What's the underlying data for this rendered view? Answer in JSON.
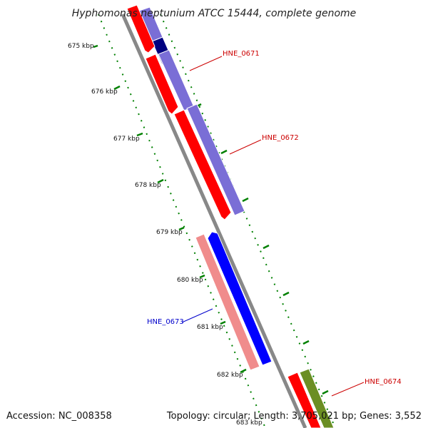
{
  "title": "Hyphomonas neptunium ATCC 15444, complete genome",
  "footer": {
    "accession": "Accession: NC_008358",
    "summary": "Topology: circular; Length: 3,705,021 bp; Genes: 3,552"
  },
  "ticks": [
    {
      "label": "675 kbp"
    },
    {
      "label": "676 kbp"
    },
    {
      "label": "677 kbp"
    },
    {
      "label": "678 kbp"
    },
    {
      "label": "679 kbp"
    },
    {
      "label": "680 kbp"
    },
    {
      "label": "681 kbp"
    },
    {
      "label": "682 kbp"
    },
    {
      "label": "683 kbp"
    }
  ],
  "genes": [
    {
      "label": "HNE_0671",
      "strand": "forward",
      "color": "#cc0000"
    },
    {
      "label": "HNE_0672",
      "strand": "forward",
      "color": "#cc0000"
    },
    {
      "label": "HNE_0673",
      "strand": "reverse",
      "color": "#0000cc"
    },
    {
      "label": "HNE_0674",
      "strand": "forward",
      "color": "#cc0000"
    }
  ],
  "colors": {
    "backbone": "#888888",
    "cds_forward": "#ff0000",
    "cds_reverse": "#0000ff",
    "product_forward": "#7a6ed6",
    "product_forward_dark": "#000080",
    "product_reverse": "#f08c8c",
    "product_other": "#6b8e23",
    "tick": "#008000"
  }
}
